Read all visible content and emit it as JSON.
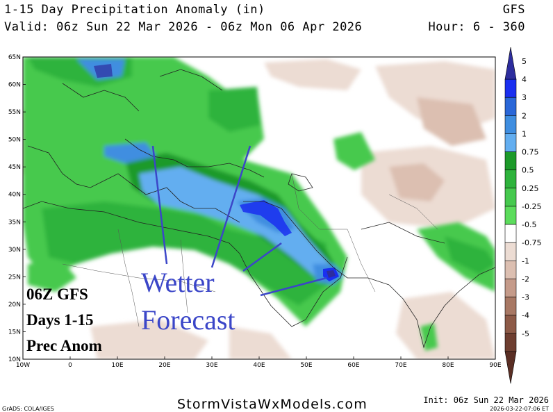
{
  "header": {
    "title": "1-15 Day Precipitation Anomaly (in)",
    "valid": "Valid: 06z Sun 22 Mar 2026 - 06z Mon 06 Apr 2026",
    "model": "GFS",
    "hour": "Hour: 6 - 360"
  },
  "axes": {
    "lat_labels": [
      "65N",
      "60N",
      "55N",
      "50N",
      "45N",
      "40N",
      "35N",
      "30N",
      "25N",
      "20N",
      "15N",
      "10N"
    ],
    "lon_labels": [
      "10W",
      "0",
      "10E",
      "20E",
      "30E",
      "40E",
      "50E",
      "60E",
      "70E",
      "80E",
      "90E"
    ]
  },
  "colorbar": {
    "labels": [
      "5",
      "4",
      "3",
      "2",
      "1",
      "0.75",
      "0.5",
      "0.25",
      "-0.25",
      "-0.5",
      "-0.75",
      "-1",
      "-2",
      "-3",
      "-4",
      "-5"
    ],
    "colors": [
      "#2d2d9e",
      "#1a2ff0",
      "#2a67d8",
      "#3f8ee0",
      "#63aef0",
      "#1d9a2a",
      "#2eb33c",
      "#46c94e",
      "#5cdc5c",
      "#ffffff",
      "#ecdcd3",
      "#dcbfb1",
      "#c59b8a",
      "#a87864",
      "#8d5a47",
      "#6e3e30",
      "#5a2e24"
    ]
  },
  "map": {
    "region": "Europe, North Africa, Middle East and South Asia",
    "colors": {
      "ocean": "#ffffff",
      "wet_light": "#5cdc5c",
      "wet_mid": "#2eb33c",
      "wet_blue": "#63aef0",
      "wet_deep": "#2a67d8",
      "dry_light": "#ecdcd3",
      "dry_mid": "#dcbfb1"
    }
  },
  "annotations": {
    "caption_lines": [
      "06Z GFS",
      "Days 1-15",
      "Prec Anom"
    ],
    "overlay_lines": [
      "Wetter",
      "Forecast"
    ],
    "overlay_color": "#3b46c8"
  },
  "footer": {
    "website": "StormVistaWxModels.com",
    "grads": "GrADS: COLA/IGES",
    "init": "Init: 06z Sun 22 Mar 2026",
    "timestamp": "2026-03-22-07:06 ET"
  }
}
